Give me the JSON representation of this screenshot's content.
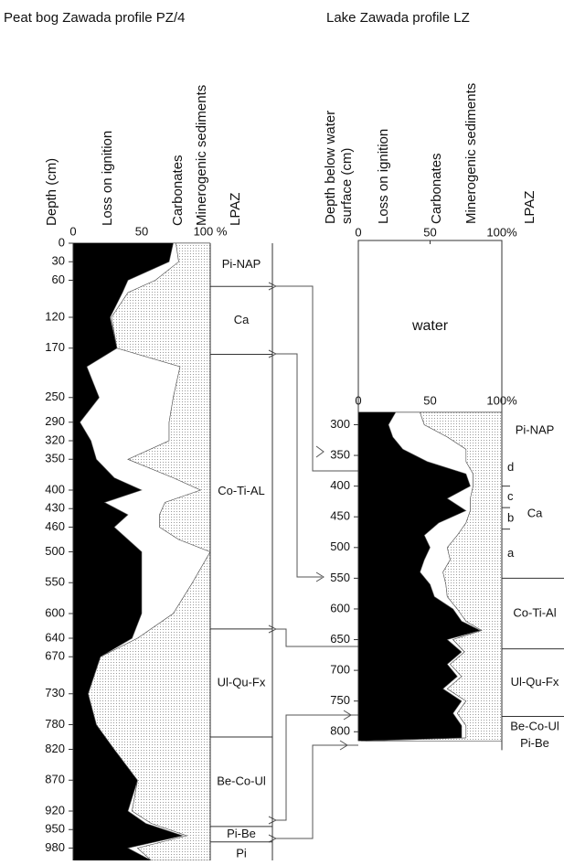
{
  "chart_data": [
    {
      "type": "stacked_area",
      "title": "Peat bog  Zawada profile PZ/4",
      "ylabel": "Depth (cm)",
      "zone_label": "LPAZ",
      "ylim": [
        0,
        1000
      ],
      "yticks": [
        0,
        30,
        60,
        120,
        170,
        250,
        290,
        320,
        350,
        400,
        430,
        460,
        500,
        550,
        600,
        640,
        670,
        730,
        780,
        820,
        870,
        920,
        950,
        980
      ],
      "xlim": [
        0,
        100
      ],
      "xticks": [
        0,
        50,
        {
          "value": 100,
          "label": "100 %"
        }
      ],
      "y": [
        0,
        30,
        60,
        80,
        120,
        170,
        200,
        250,
        290,
        320,
        350,
        380,
        400,
        420,
        440,
        460,
        480,
        500,
        550,
        600,
        640,
        670,
        730,
        780,
        820,
        870,
        920,
        940,
        960,
        980,
        1000
      ],
      "series": [
        {
          "name": "Loss on ignition",
          "color": "#000000",
          "values": [
            73,
            70,
            40,
            36,
            27,
            32,
            10,
            19,
            5,
            13,
            17,
            30,
            50,
            23,
            40,
            30,
            40,
            50,
            50,
            50,
            43,
            20,
            11,
            17,
            30,
            47,
            40,
            53,
            80,
            40,
            57
          ]
        },
        {
          "name": "Carbonates",
          "color": "#ffffff",
          "values": [
            2,
            7,
            20,
            4,
            1,
            0,
            68,
            54,
            65,
            57,
            23,
            43,
            43,
            44,
            23,
            33,
            37,
            50,
            37,
            23,
            4,
            0,
            0,
            0,
            0,
            0,
            3,
            4,
            3,
            7,
            0
          ]
        },
        {
          "name": "Minerogenic sediments",
          "color": "#9a9a9a",
          "values": [
            25,
            23,
            40,
            60,
            72,
            68,
            22,
            27,
            30,
            30,
            60,
            27,
            7,
            33,
            37,
            37,
            23,
            0,
            13,
            27,
            53,
            80,
            89,
            83,
            70,
            53,
            57,
            43,
            17,
            53,
            43
          ]
        }
      ],
      "zones": [
        {
          "label": "Pi-NAP",
          "from": 0,
          "to": 70
        },
        {
          "label": "Ca",
          "from": 70,
          "to": 180
        },
        {
          "label": "Co-Ti-AL",
          "from": 180,
          "to": 625
        },
        {
          "label": "Ul-Qu-Fx",
          "from": 625,
          "to": 800
        },
        {
          "label": "Be-Co-Ul",
          "from": 800,
          "to": 945
        },
        {
          "label": "Pi-Be",
          "from": 945,
          "to": 970
        },
        {
          "label": "Pi",
          "from": 970,
          "to": 1010
        }
      ],
      "boundaries": [
        70,
        180,
        625,
        800,
        945,
        970
      ]
    },
    {
      "type": "stacked_area",
      "title": "Lake  Zawada  profile LZ",
      "ylabel": [
        "Depth below water",
        "surface (cm)"
      ],
      "zone_label": "LPAZ",
      "ylim": [
        0,
        830
      ],
      "yticks": [
        300,
        350,
        400,
        450,
        500,
        550,
        600,
        650,
        700,
        750,
        800
      ],
      "xlim": [
        0,
        100
      ],
      "xticks": [
        0,
        50,
        {
          "value": 100,
          "label": "100%"
        }
      ],
      "water": "water",
      "y": [
        280,
        300,
        320,
        340,
        360,
        380,
        400,
        420,
        440,
        460,
        480,
        500,
        520,
        540,
        560,
        580,
        600,
        620,
        635,
        650,
        670,
        690,
        710,
        730,
        750,
        770,
        790,
        810,
        815
      ],
      "series": [
        {
          "name": "Loss on ignition",
          "color": "#000000",
          "values": [
            26,
            21,
            24,
            31,
            48,
            75,
            78,
            62,
            75,
            56,
            46,
            50,
            46,
            43,
            50,
            53,
            66,
            72,
            85,
            62,
            72,
            62,
            69,
            59,
            72,
            66,
            72,
            72,
            2
          ]
        },
        {
          "name": "Carbonates",
          "color": "#ffffff",
          "values": [
            17,
            25,
            38,
            44,
            27,
            5,
            2,
            16,
            3,
            19,
            23,
            12,
            18,
            16,
            11,
            9,
            3,
            3,
            1,
            4,
            2,
            2,
            3,
            3,
            3,
            3,
            3,
            3,
            3
          ]
        },
        {
          "name": "Minerogenic sediments",
          "color": "#9a9a9a",
          "values": [
            57,
            54,
            38,
            25,
            25,
            20,
            20,
            22,
            22,
            25,
            31,
            38,
            36,
            41,
            39,
            38,
            31,
            25,
            14,
            34,
            26,
            36,
            28,
            38,
            25,
            31,
            25,
            25,
            95
          ]
        }
      ],
      "zones": [
        {
          "label": "Pi-NAP",
          "from": 280,
          "to": 340
        },
        {
          "label": "Ca",
          "from": 340,
          "to": 550
        },
        {
          "label": "Co-Ti-Al",
          "from": 550,
          "to": 665
        },
        {
          "label": "Ul-Qu-Fx",
          "from": 665,
          "to": 775
        },
        {
          "label": "Be-Co-Ul",
          "from": 775,
          "to": 810
        },
        {
          "label": "Pi-Be",
          "from": 810,
          "to": 830
        }
      ],
      "boundaries": [
        550,
        665,
        775
      ],
      "subzones": [
        {
          "label": "d",
          "from": 340,
          "to": 400
        },
        {
          "label": "c",
          "from": 400,
          "to": 435
        },
        {
          "label": "b",
          "from": 435,
          "to": 470
        },
        {
          "label": "a",
          "from": 470,
          "to": 550
        }
      ],
      "subzone_boundaries": [
        400,
        435,
        470
      ]
    }
  ]
}
